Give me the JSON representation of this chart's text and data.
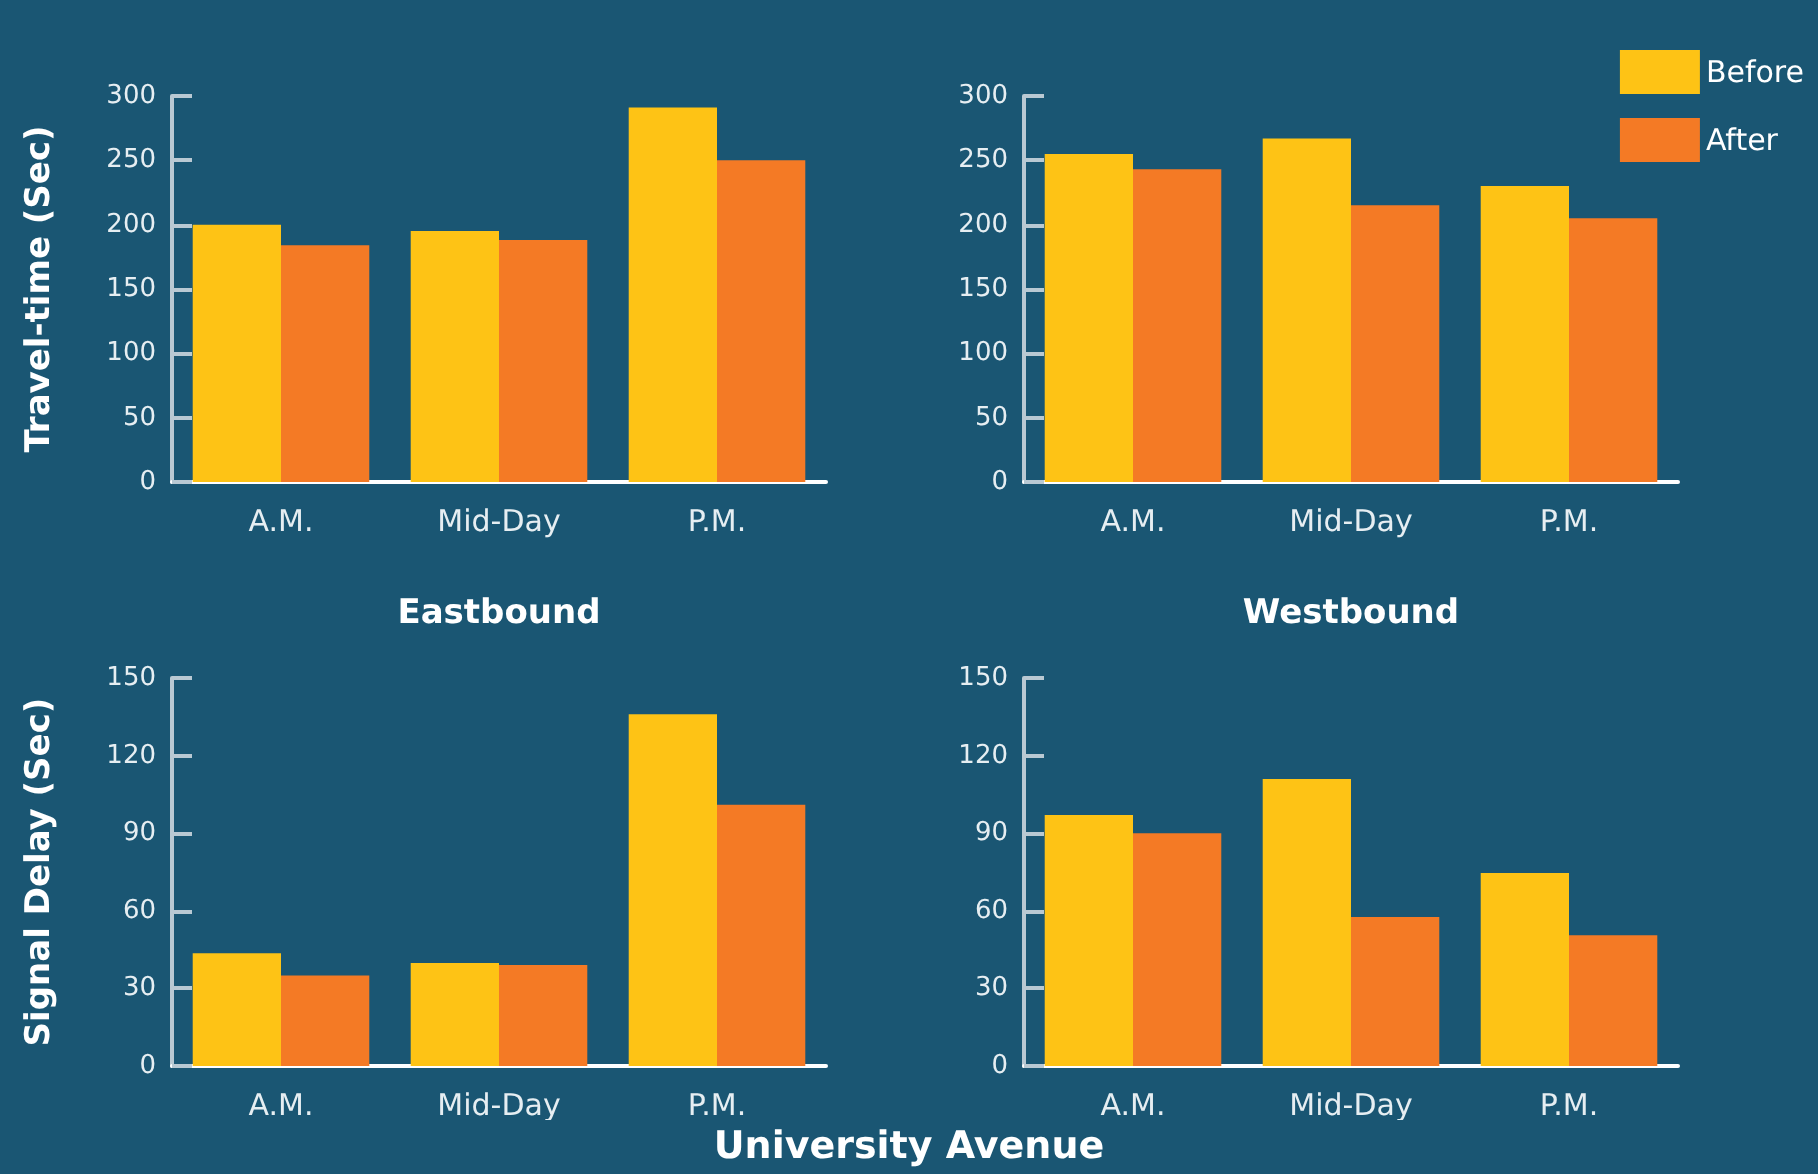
{
  "chart_data": [
    {
      "type": "bar",
      "ylabel": "Travel-time (Sec)",
      "xlabel": "Eastbound",
      "categories": [
        "A.M.",
        "Mid-Day",
        "P.M."
      ],
      "series": [
        {
          "color": "#fec315",
          "values": [
            200,
            195,
            291
          ]
        },
        {
          "color": "#f47a25",
          "values": [
            184,
            188,
            250
          ]
        }
      ],
      "ylim": [
        0,
        300
      ],
      "yticks": [
        0,
        50,
        100,
        150,
        200,
        250,
        300
      ],
      "grid": false,
      "legend": false
    },
    {
      "type": "bar",
      "xlabel": "Westbound",
      "categories": [
        "A.M.",
        "Mid-Day",
        "P.M."
      ],
      "series": [
        {
          "name": "Before",
          "color": "#fec315",
          "values": [
            255,
            267,
            230
          ]
        },
        {
          "name": "After",
          "color": "#f47a25",
          "values": [
            243,
            215,
            205
          ]
        }
      ],
      "ylim": [
        0,
        300
      ],
      "yticks": [
        0,
        50,
        100,
        150,
        200,
        250,
        300
      ],
      "grid": false,
      "legend": "top right"
    },
    {
      "type": "bar",
      "ylabel": "Signal Delay (Sec)",
      "categories": [
        "A.M.",
        "Mid-Day",
        "P.M."
      ],
      "series": [
        {
          "color": "#fec315",
          "values": [
            43.6,
            39.8,
            136
          ]
        },
        {
          "color": "#f47a25",
          "values": [
            35,
            39,
            101
          ]
        }
      ],
      "ylim": [
        0,
        150
      ],
      "yticks": [
        0,
        30,
        60,
        90,
        120,
        150
      ],
      "grid": false,
      "legend": false,
      "annotations": [
        "University Avenue"
      ]
    },
    {
      "type": "bar",
      "categories": [
        "A.M.",
        "Mid-Day",
        "P.M."
      ],
      "series": [
        {
          "color": "#fec315",
          "values": [
            97,
            111,
            74.6
          ]
        },
        {
          "color": "#f47a25",
          "values": [
            90,
            57.6,
            50.5
          ]
        }
      ],
      "ylim": [
        0,
        150
      ],
      "yticks": [
        0,
        30,
        60,
        90,
        120,
        150
      ],
      "grid": false,
      "legend": false
    }
  ]
}
